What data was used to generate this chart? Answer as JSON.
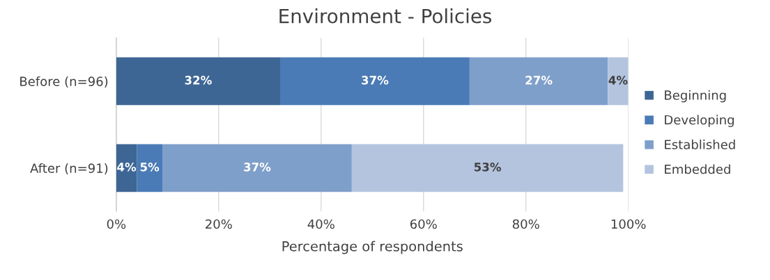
{
  "chart_data": {
    "type": "bar",
    "orientation": "horizontal",
    "stacked": true,
    "title": "Environment - Policies",
    "xlabel": "Percentage of respondents",
    "categories": [
      "Before (n=96)",
      "After (n=91)"
    ],
    "series": [
      {
        "name": "Beginning",
        "color": "#3e6695",
        "values": [
          32,
          4
        ],
        "value_labels": [
          "32%",
          "4%"
        ]
      },
      {
        "name": "Developing",
        "color": "#4a7bb6",
        "values": [
          37,
          5
        ],
        "value_labels": [
          "37%",
          "5%"
        ]
      },
      {
        "name": "Established",
        "color": "#7f9fcb",
        "values": [
          27,
          37
        ],
        "value_labels": [
          "27%",
          "37%"
        ]
      },
      {
        "name": "Embedded",
        "color": "#b4c4df",
        "values": [
          4,
          53
        ],
        "value_labels": [
          "4%",
          "53%"
        ]
      }
    ],
    "xlim": [
      0,
      100
    ],
    "xticks": [
      {
        "value": 0,
        "label": "0%"
      },
      {
        "value": 20,
        "label": "20%"
      },
      {
        "value": 40,
        "label": "40%"
      },
      {
        "value": 60,
        "label": "60%"
      },
      {
        "value": 80,
        "label": "80%"
      },
      {
        "value": 100,
        "label": "100%"
      }
    ],
    "grid": "x",
    "legend": "right"
  }
}
